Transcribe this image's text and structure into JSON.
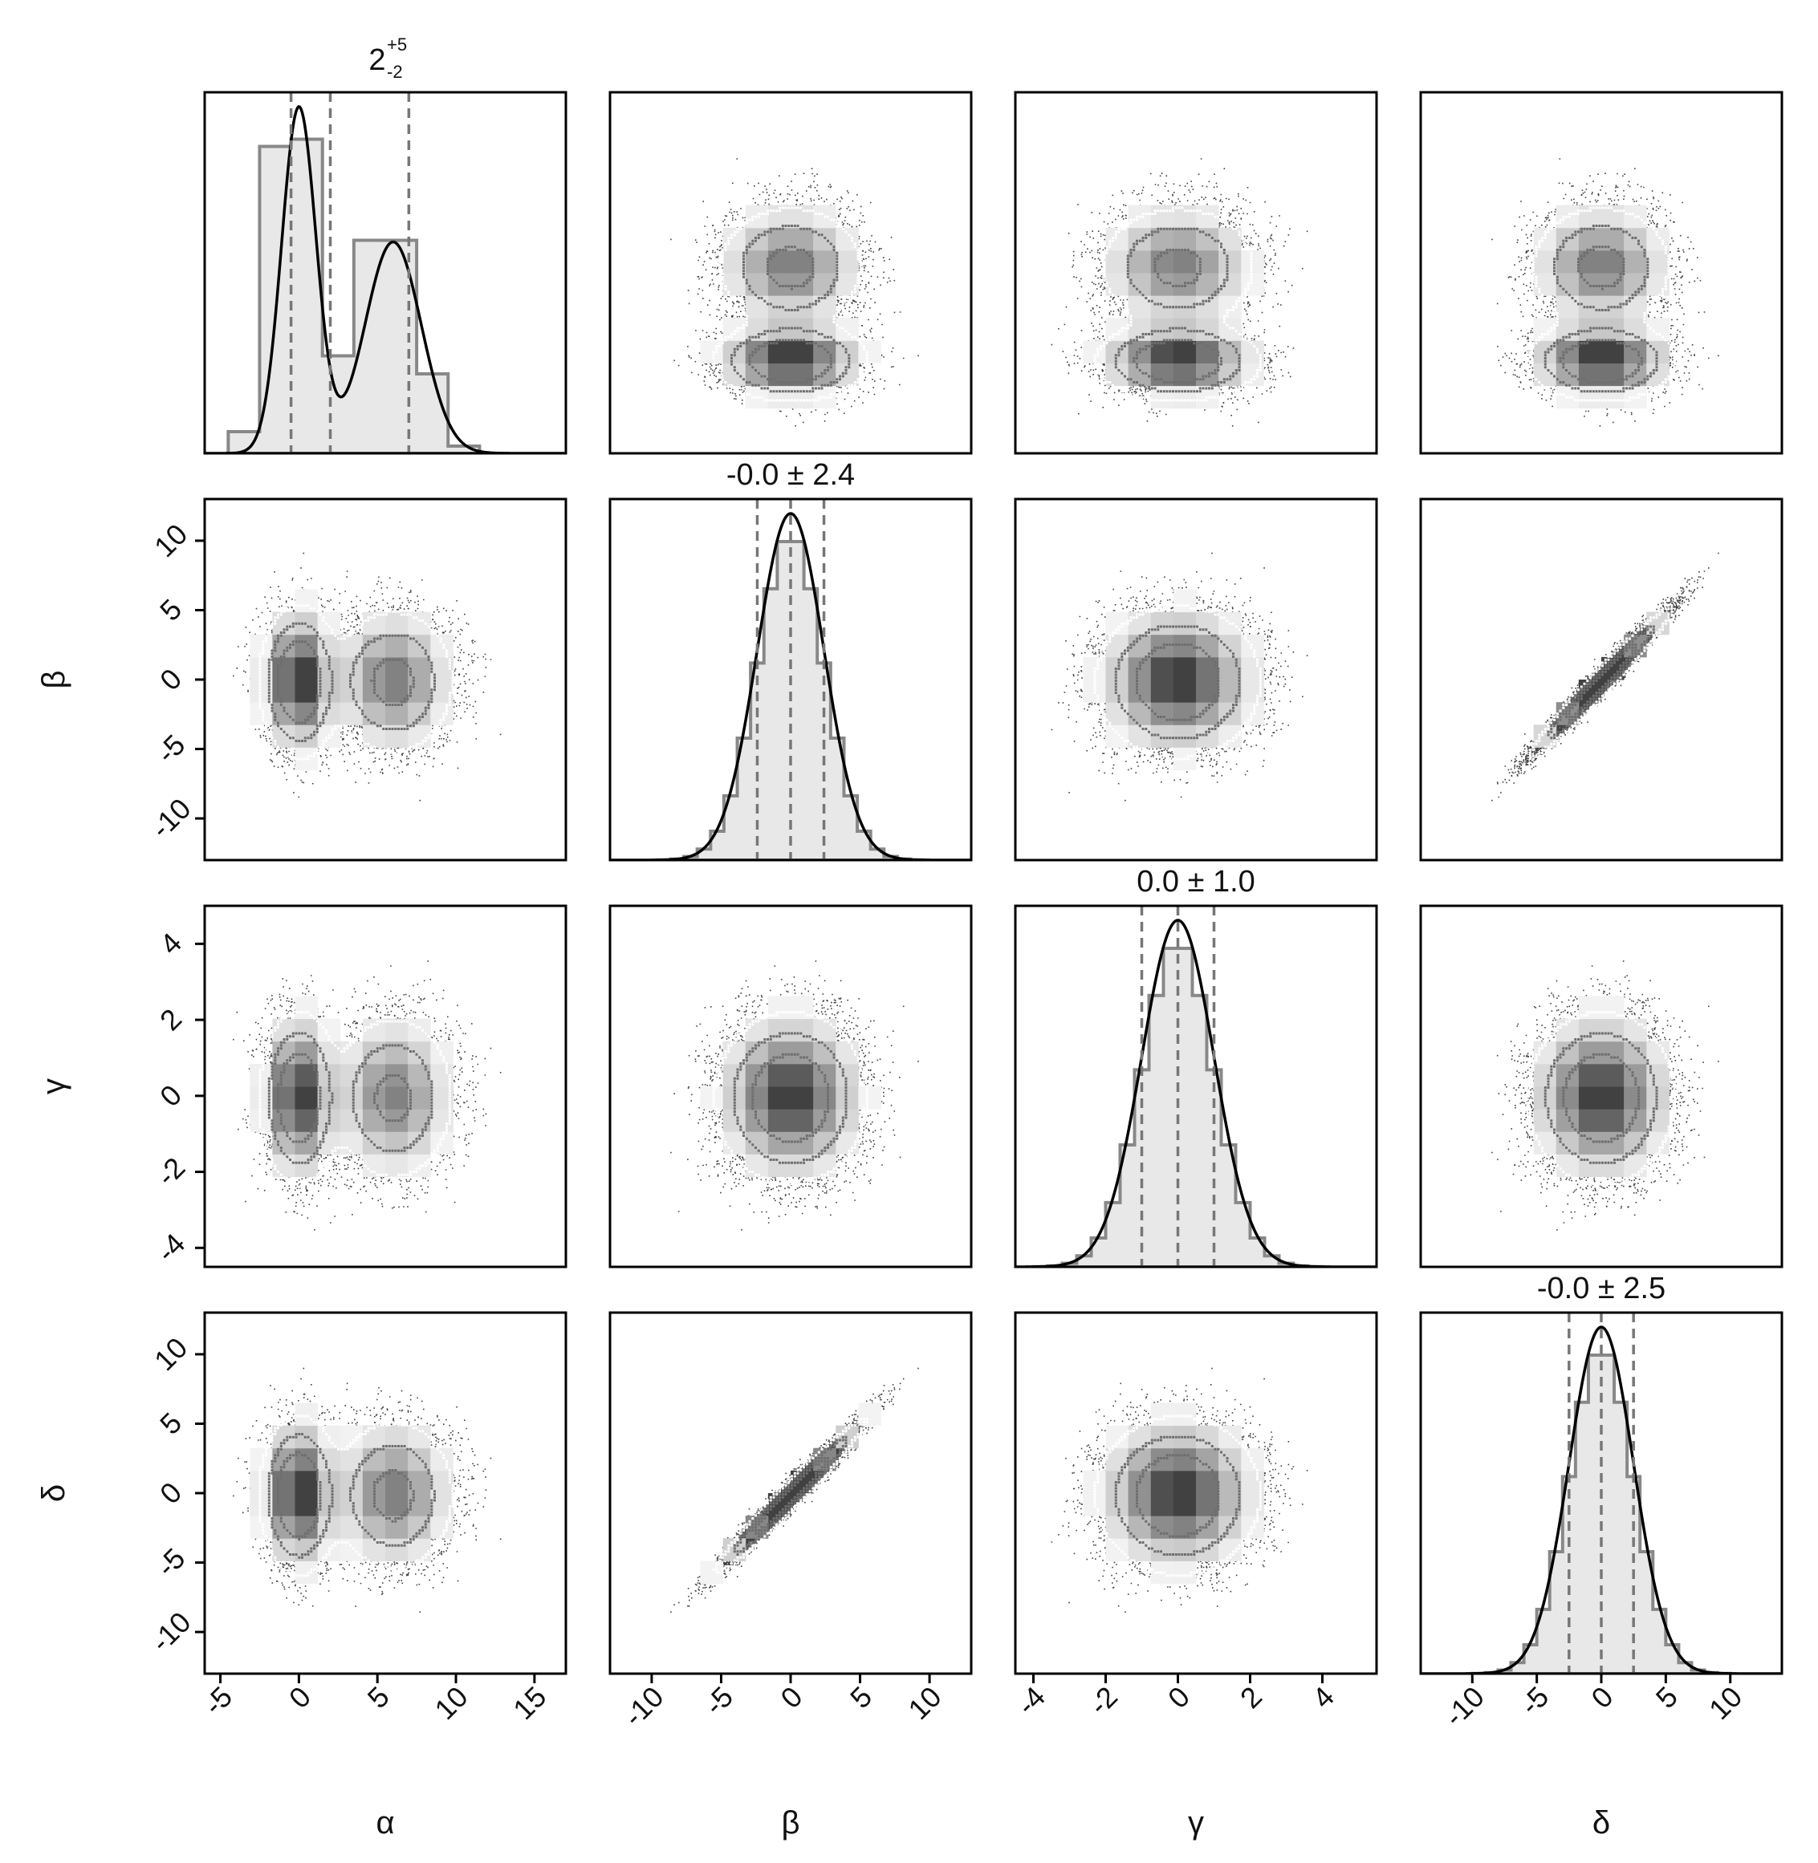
{
  "chart_data": {
    "type": "corner",
    "parameters": [
      "α",
      "β",
      "γ",
      "δ"
    ],
    "diagonal_titles": [
      "2",
      "-0.0 ± 2.4",
      "0.0 ± 1.0",
      "-0.0 ± 2.5"
    ],
    "alpha_title": {
      "median": "2",
      "upper": "+5",
      "lower": "-2"
    },
    "quantiles": [
      [
        -0.5,
        2,
        7
      ],
      [
        -2.4,
        0,
        2.4
      ],
      [
        -1.0,
        0,
        1.0
      ],
      [
        -2.5,
        0,
        2.5
      ]
    ],
    "ranges": [
      [
        -6,
        17
      ],
      [
        -13,
        13
      ],
      [
        -4.5,
        5.5
      ],
      [
        -14,
        14
      ]
    ],
    "row_ranges": [
      null,
      [
        -13,
        13
      ],
      [
        -4.5,
        5
      ],
      [
        -13,
        13
      ]
    ],
    "ticks": [
      [
        "-5",
        "0",
        "5",
        "10",
        "15"
      ],
      [
        "-10",
        "-5",
        "0",
        "5",
        "10"
      ],
      [
        "-4",
        "-2",
        "0",
        "2",
        "4"
      ],
      [
        "-10",
        "-5",
        "0",
        "5",
        "10"
      ]
    ],
    "tick_values": [
      [
        -5,
        0,
        5,
        10,
        15
      ],
      [
        -10,
        -5,
        0,
        5,
        10
      ],
      [
        -4,
        -2,
        0,
        2,
        4
      ],
      [
        -10,
        -5,
        0,
        5,
        10
      ]
    ],
    "row_tick_values": [
      null,
      [
        -10,
        -5,
        0,
        5,
        10
      ],
      [
        -4,
        -2,
        0,
        2,
        4
      ],
      [
        -10,
        -5,
        0,
        5,
        10
      ]
    ],
    "row_ticks": [
      null,
      [
        "10",
        "5",
        "0",
        "-5",
        "-10"
      ],
      [
        "4",
        "2",
        "0",
        "-2",
        "-4"
      ],
      [
        "10",
        "5",
        "0",
        "-5",
        "-10"
      ]
    ],
    "histograms": {
      "alpha": {
        "bin_edges": [
          -4.5,
          -2.5,
          -0.5,
          1.5,
          3.5,
          5.5,
          7.5,
          9.5,
          11.5
        ],
        "heights": [
          0.06,
          0.85,
          0.87,
          0.27,
          0.59,
          0.59,
          0.22,
          0.02
        ]
      }
    },
    "correlations": {
      "β-δ": 0.98
    },
    "colors": {
      "hist_fill": "#e8e8e8",
      "hist_edge": "#888888",
      "kde": "#000000",
      "quantile": "#777777"
    },
    "grid": false
  }
}
